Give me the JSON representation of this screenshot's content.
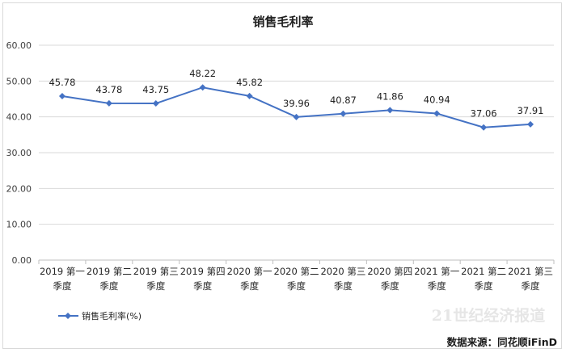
{
  "chart_data": {
    "type": "line",
    "title": "销售毛利率",
    "categories": [
      [
        "2019 第一",
        "季度"
      ],
      [
        "2019 第二",
        "季度"
      ],
      [
        "2019 第三",
        "季度"
      ],
      [
        "2019 第四",
        "季度"
      ],
      [
        "2020 第一",
        "季度"
      ],
      [
        "2020 第二",
        "季度"
      ],
      [
        "2020 第三",
        "季度"
      ],
      [
        "2020 第四",
        "季度"
      ],
      [
        "2021 第一",
        "季度"
      ],
      [
        "2021 第二",
        "季度"
      ],
      [
        "2021 第三",
        "季度"
      ]
    ],
    "series": [
      {
        "name": "销售毛利率(%)",
        "color": "#4472c4",
        "values": [
          45.78,
          43.78,
          43.75,
          48.22,
          45.82,
          39.96,
          40.87,
          41.86,
          40.94,
          37.06,
          37.91
        ],
        "labels": [
          "45.78",
          "43.78",
          "43.75",
          "48.22",
          "45.82",
          "39.96",
          "40.87",
          "41.86",
          "40.94",
          "37.06",
          "37.91"
        ]
      }
    ],
    "ylim": [
      0,
      60
    ],
    "yticks": [
      "0.00",
      "10.00",
      "20.00",
      "30.00",
      "40.00",
      "50.00",
      "60.00"
    ],
    "grid": true,
    "legend_position": "bottom-left",
    "source": "数据来源：同花顺iFinD",
    "watermark": "21世纪经济报道"
  }
}
